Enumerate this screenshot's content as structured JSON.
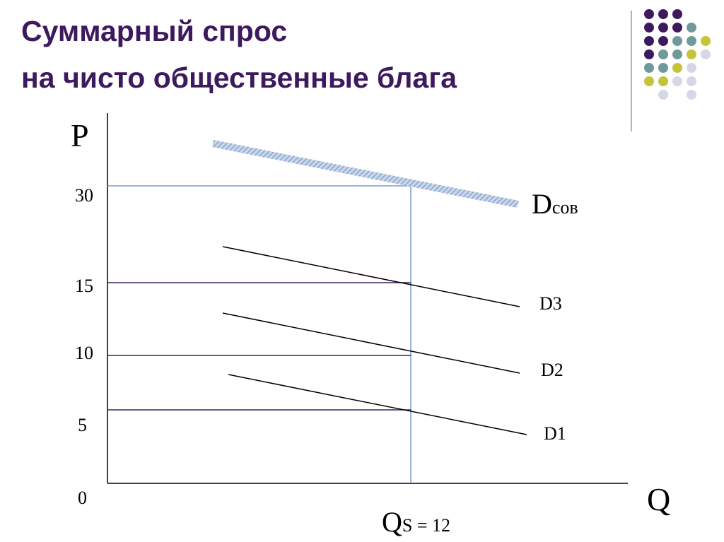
{
  "title": {
    "line1": "Суммарный спрос",
    "line2": "на чисто общественные блага"
  },
  "axes": {
    "y_label": "P",
    "x_label": "Q",
    "origin": "0",
    "y_tick_labels": [
      "30",
      "15",
      "10",
      "5"
    ],
    "x_marker": {
      "main": "Q",
      "sub": "S = 12"
    }
  },
  "curves": [
    {
      "main": "D",
      "sub": "сов"
    },
    {
      "main": "D3"
    },
    {
      "main": "D2"
    },
    {
      "main": "D1"
    }
  ]
}
